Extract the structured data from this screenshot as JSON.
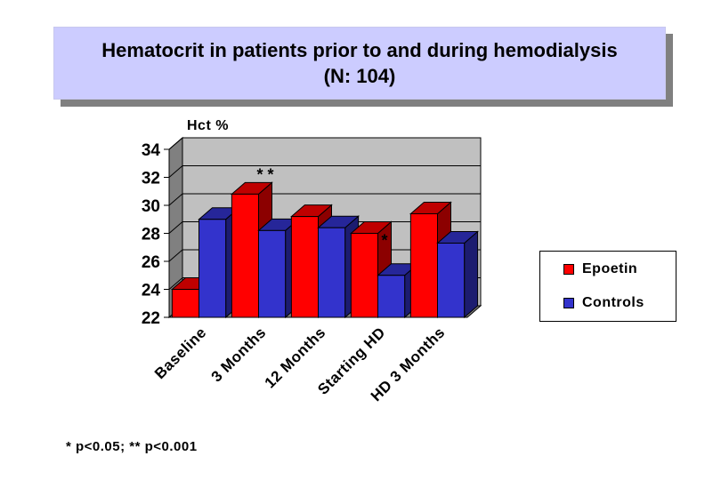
{
  "chart_data": {
    "type": "bar",
    "title": "Hematocrit in patients prior to and during hemodialysis (N: 104)",
    "ylabel": "Hct %",
    "xlabel": "",
    "ylim": [
      22,
      34
    ],
    "yticks": [
      22,
      24,
      26,
      28,
      30,
      32,
      34
    ],
    "grid": true,
    "legend_position": "right",
    "categories": [
      "Baseline",
      "3 Months",
      "12 Months",
      "Starting HD",
      "HD 3 Months"
    ],
    "series": [
      {
        "name": "Epoetin",
        "color": "#ff0000",
        "values": [
          24.0,
          30.8,
          29.2,
          28.0,
          29.4
        ]
      },
      {
        "name": "Controls",
        "color": "#3333cc",
        "values": [
          29.0,
          28.2,
          28.4,
          25.0,
          27.3
        ]
      }
    ],
    "annotations": [
      {
        "text": "* *",
        "category": "3 Months"
      },
      {
        "text": "*",
        "category": "Starting HD"
      }
    ],
    "footnote": "* p<0.05; ** p<0.001"
  }
}
